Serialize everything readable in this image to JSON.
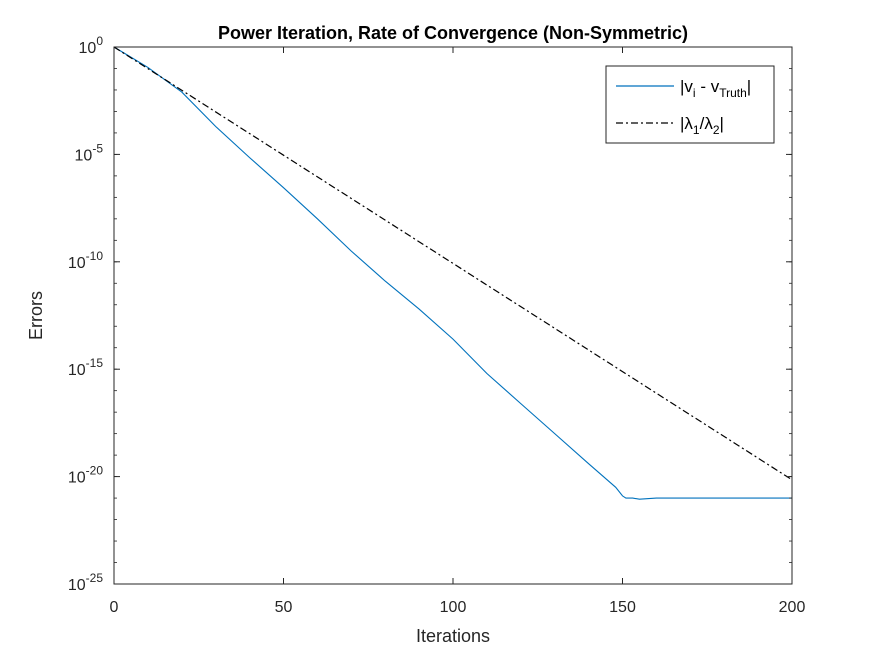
{
  "chart_data": {
    "type": "line",
    "title": "Power Iteration, Rate of Convergence (Non-Symmetric)",
    "xlabel": "Iterations",
    "ylabel": "Errors",
    "xlim": [
      0,
      200
    ],
    "ylim": [
      1e-25,
      1
    ],
    "y_scale": "log",
    "x_ticks": [
      0,
      50,
      100,
      150,
      200
    ],
    "x_tick_labels": [
      "0",
      "50",
      "100",
      "150",
      "200"
    ],
    "y_tick_exponents": [
      0,
      -5,
      -10,
      -15,
      -20,
      -25
    ],
    "y_tick_base": "10",
    "grid": false,
    "legend_position": "top-right",
    "series": [
      {
        "name": "|v_i - v_Truth|",
        "color": "#0072BD",
        "style": "solid",
        "x": [
          0,
          10,
          20,
          30,
          40,
          50,
          60,
          70,
          80,
          90,
          100,
          110,
          120,
          130,
          140,
          148,
          150,
          151,
          153,
          155,
          160,
          180,
          200
        ],
        "y_log10": [
          0,
          -0.95,
          -2.1,
          -3.7,
          -5.15,
          -6.55,
          -8.0,
          -9.5,
          -10.9,
          -12.2,
          -13.6,
          -15.2,
          -16.6,
          -18.0,
          -19.4,
          -20.5,
          -20.9,
          -21.0,
          -21.0,
          -21.05,
          -21.0,
          -21.0,
          -21.0
        ]
      },
      {
        "name": "|λ1/λ2|",
        "color": "#000000",
        "style": "dashdot",
        "x": [
          0,
          200
        ],
        "y_log10": [
          0,
          -20.15
        ]
      }
    ]
  }
}
